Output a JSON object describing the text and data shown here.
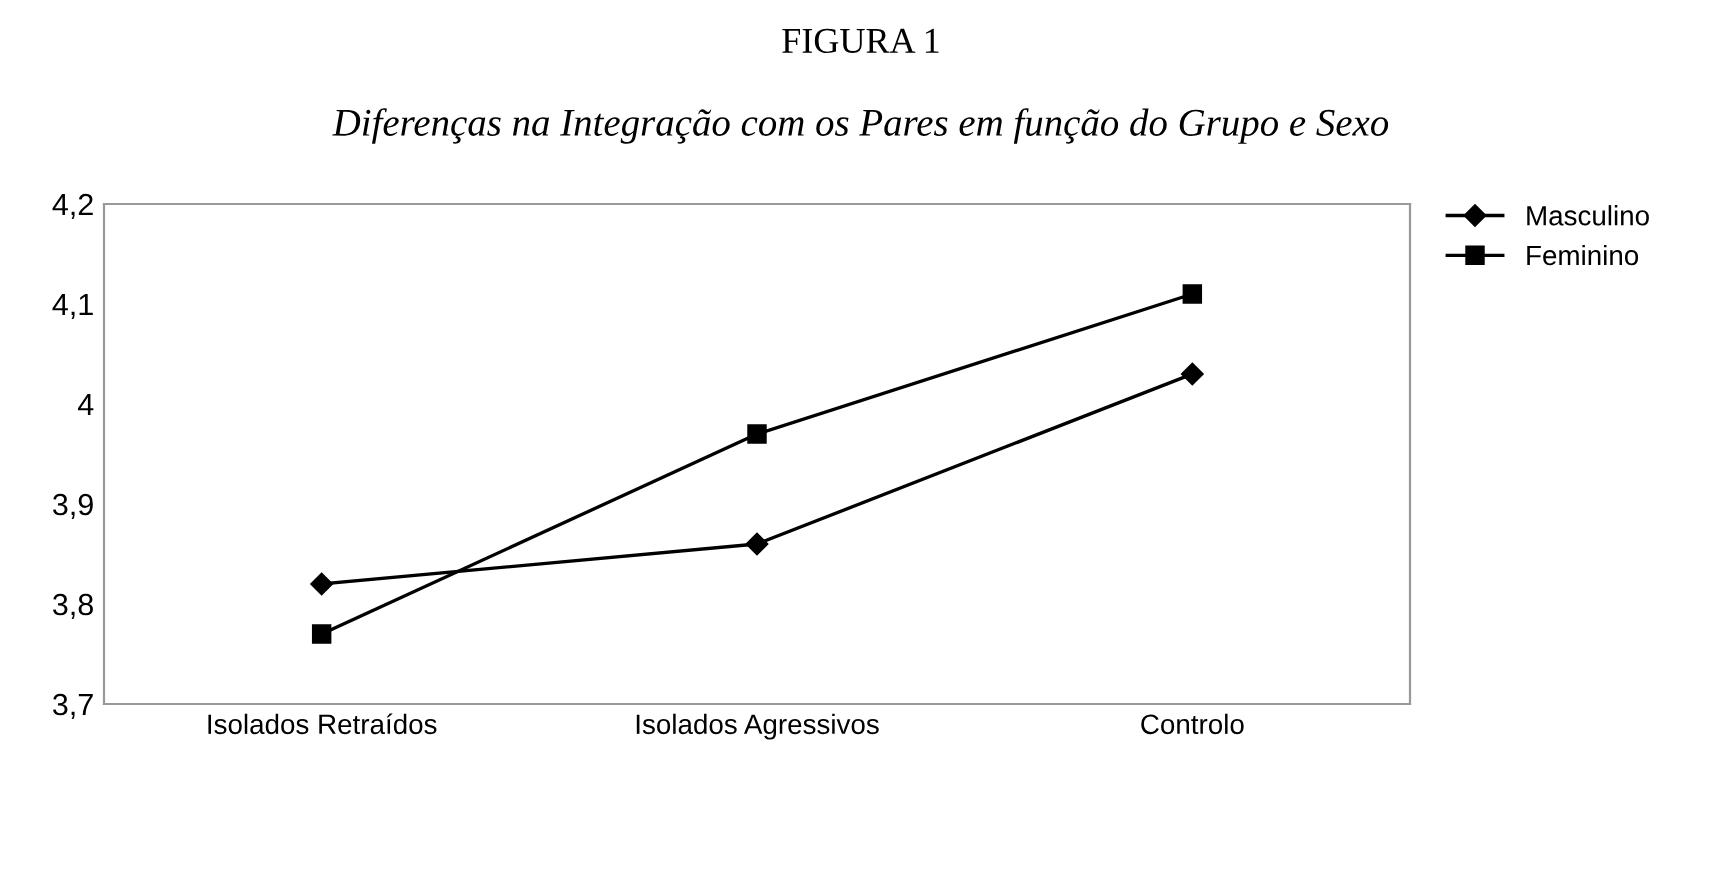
{
  "chart_data": {
    "type": "line",
    "title": "FIGURA 1",
    "subtitle": "Diferenças na Integração com os Pares em função do Grupo e Sexo",
    "categories": [
      "Isolados Retraídos",
      "Isolados Agressivos",
      "Controlo"
    ],
    "series": [
      {
        "name": "Masculino",
        "color": "#000000",
        "marker": "diamond",
        "values": [
          3.82,
          3.86,
          4.03
        ]
      },
      {
        "name": "Feminino",
        "color": "#000000",
        "marker": "square",
        "values": [
          3.77,
          3.97,
          4.11
        ]
      }
    ],
    "ylim": [
      3.7,
      4.2
    ],
    "yticks": [
      {
        "value": 3.7,
        "label": "3,7"
      },
      {
        "value": 3.8,
        "label": "3,8"
      },
      {
        "value": 3.9,
        "label": "3,9"
      },
      {
        "value": 4.0,
        "label": "4"
      },
      {
        "value": 4.1,
        "label": "4,1"
      },
      {
        "value": 4.2,
        "label": "4,2"
      }
    ],
    "grid": false,
    "legend": "top right",
    "line_style": "solid"
  }
}
